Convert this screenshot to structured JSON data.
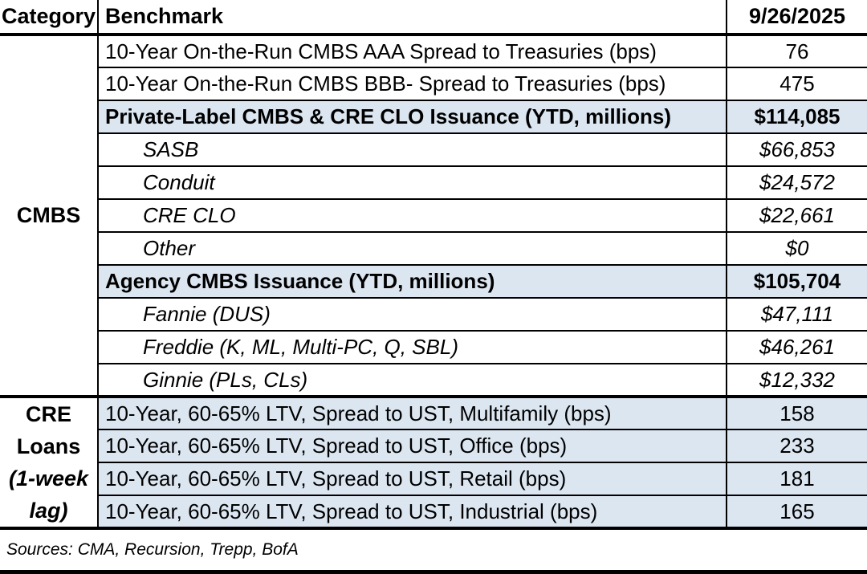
{
  "table": {
    "header": {
      "category": "Category",
      "benchmark": "Benchmark",
      "date": "9/26/2025"
    },
    "categories": {
      "cmbs": {
        "label": "CMBS"
      },
      "cre": {
        "lines": [
          "CRE",
          "Loans",
          "(1-week",
          "lag)"
        ]
      }
    },
    "rows": [
      {
        "benchmark": "10-Year On-the-Run CMBS AAA Spread to Treasuries (bps)",
        "value": "76"
      },
      {
        "benchmark": "10-Year On-the-Run CMBS BBB- Spread to Treasuries (bps)",
        "value": "475"
      },
      {
        "benchmark": "Private-Label CMBS & CRE CLO Issuance (YTD, millions)",
        "value": "$114,085"
      },
      {
        "benchmark": "SASB",
        "value": "$66,853"
      },
      {
        "benchmark": "Conduit",
        "value": "$24,572"
      },
      {
        "benchmark": "CRE CLO",
        "value": "$22,661"
      },
      {
        "benchmark": "Other",
        "value": "$0"
      },
      {
        "benchmark": "Agency CMBS Issuance (YTD, millions)",
        "value": "$105,704"
      },
      {
        "benchmark": "Fannie (DUS)",
        "value": "$47,111"
      },
      {
        "benchmark": "Freddie (K, ML, Multi-PC, Q, SBL)",
        "value": "$46,261"
      },
      {
        "benchmark": "Ginnie (PLs, CLs)",
        "value": "$12,332"
      },
      {
        "benchmark": "10-Year, 60-65% LTV, Spread to UST, Multifamily (bps)",
        "value": "158"
      },
      {
        "benchmark": "10-Year, 60-65% LTV, Spread to UST, Office (bps)",
        "value": "233"
      },
      {
        "benchmark": "10-Year, 60-65% LTV, Spread to UST, Retail (bps)",
        "value": "181"
      },
      {
        "benchmark": "10-Year, 60-65% LTV, Spread to UST, Industrial (bps)",
        "value": "165"
      }
    ]
  },
  "footer": {
    "sources": "Sources: CMA, Recursion, Trepp, BofA"
  },
  "colors": {
    "highlight_blue": "#dce6f1",
    "border": "#000000",
    "text": "#000000",
    "background": "#ffffff"
  }
}
